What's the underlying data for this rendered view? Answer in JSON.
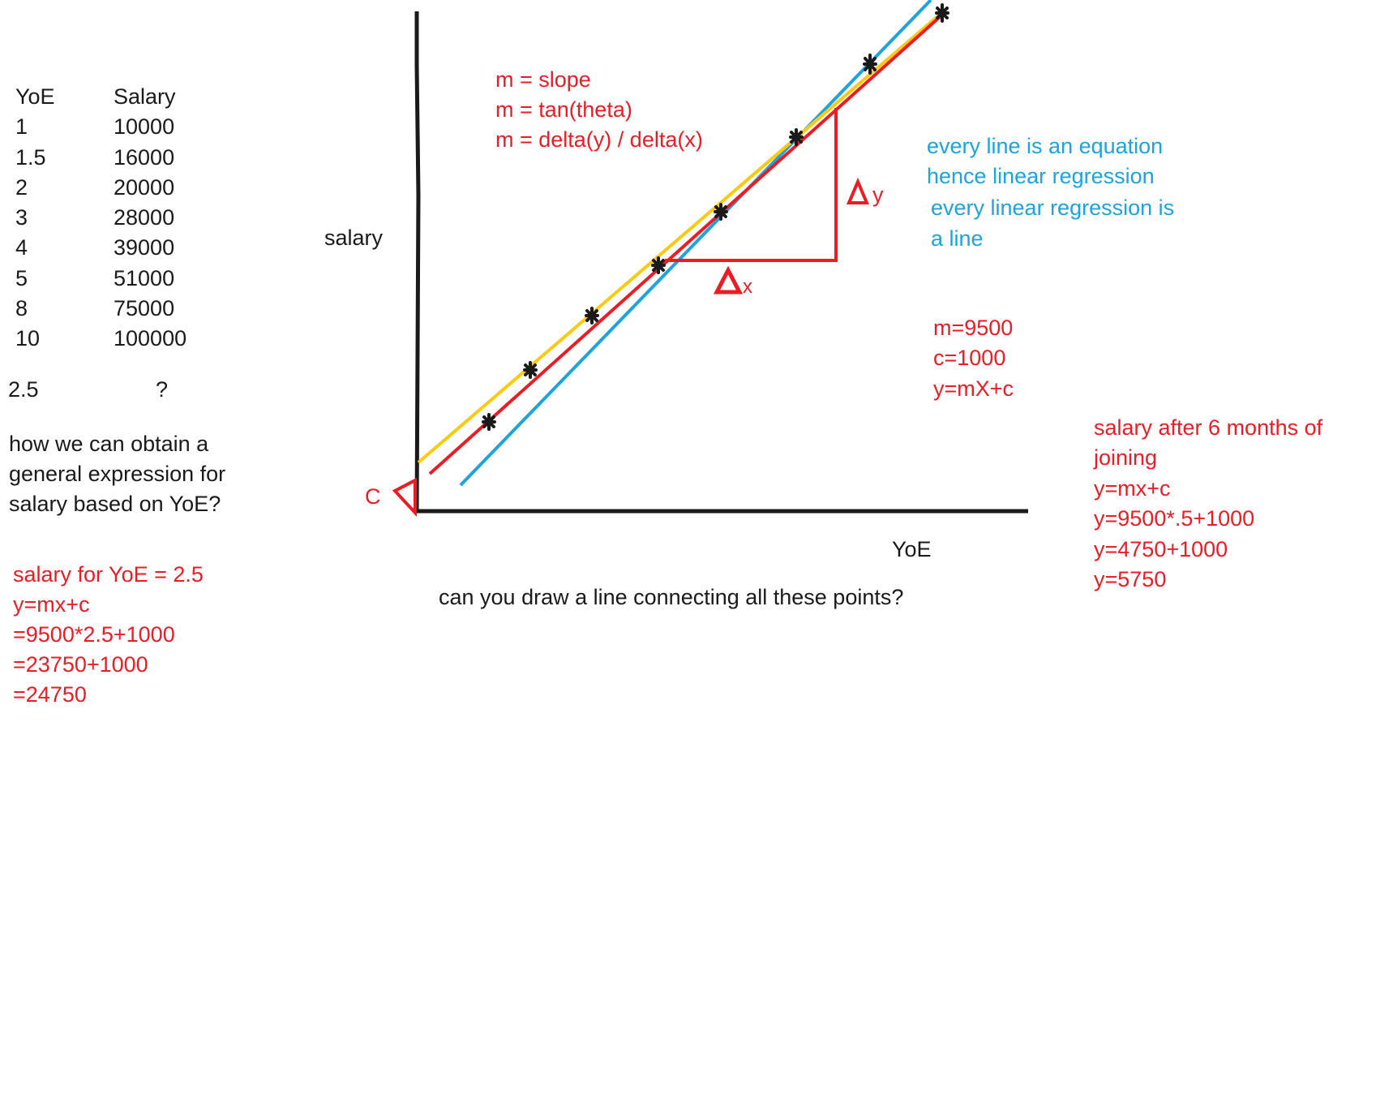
{
  "table": {
    "header_yoe": "YoE",
    "header_salary": "Salary",
    "rows": [
      {
        "yoe": "1",
        "salary": "10000"
      },
      {
        "yoe": "1.5",
        "salary": "16000"
      },
      {
        "yoe": "2",
        "salary": "20000"
      },
      {
        "yoe": "3",
        "salary": "28000"
      },
      {
        "yoe": "4",
        "salary": "39000"
      },
      {
        "yoe": "5",
        "salary": "51000"
      },
      {
        "yoe": "8",
        "salary": "75000"
      },
      {
        "yoe": "10",
        "salary": "100000"
      }
    ],
    "query_yoe": "2.5",
    "query_salary": "?"
  },
  "question": {
    "line1": "how we can obtain a",
    "line2": "general expression for",
    "line3": "salary based on YoE?"
  },
  "example": {
    "line1": "salary for YoE = 2.5",
    "line2": "y=mx+c",
    "line3": "=9500*2.5+1000",
    "line4": "=23750+1000",
    "line5": "=24750"
  },
  "graph": {
    "y_label": "salary",
    "x_label": "YoE",
    "intercept_label": "C",
    "delta_y_label": "y",
    "delta_x_label": "x",
    "caption": "can you draw a line connecting all these points?"
  },
  "slope_notes": {
    "line1": "m = slope",
    "line2": "m = tan(theta)",
    "line3": "m = delta(y) / delta(x)"
  },
  "blue_notes": {
    "line1": "every line is an equation",
    "line2": "hence linear regression",
    "line3": "every linear regression is",
    "line4": "a line"
  },
  "params": {
    "line1": "m=9500",
    "line2": "c=1000",
    "line3": "y=mX+c"
  },
  "six_months": {
    "line1": "salary after 6 months of",
    "line2": "joining",
    "line3": "y=mx+c",
    "line4": "y=9500*.5+1000",
    "line5": "y=4750+1000",
    "line6": "y=5750"
  },
  "colors": {
    "red": "#ed1c24",
    "blue": "#1ca3e0",
    "yellow": "#ffc90e",
    "black": "#1a1a1a"
  }
}
